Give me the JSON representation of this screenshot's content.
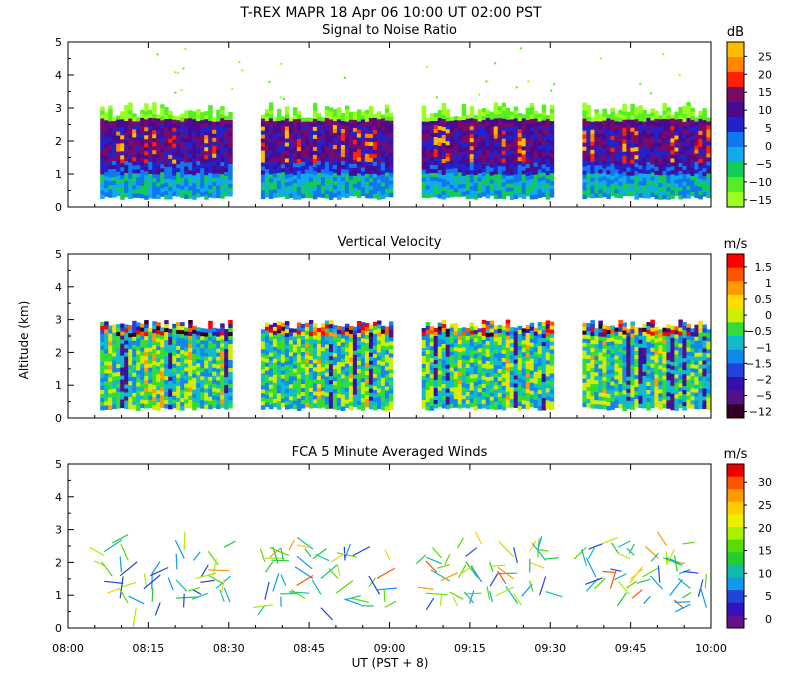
{
  "figure": {
    "title": "T-REX  MAPR 18 Apr 06  10:00 UT  02:00  PST",
    "xlabel": "UT  (PST + 8)",
    "ylabel": "Altitude (km)"
  },
  "chart_data": [
    {
      "type": "heatmap",
      "title": "Signal to Noise Ratio",
      "units": "dB",
      "ylim": [
        0,
        5
      ],
      "yticks": [
        "0",
        "1",
        "2",
        "3",
        "4",
        "5"
      ],
      "colorbar_ticks": [
        "25",
        "20",
        "15",
        "10",
        "5",
        "0",
        "−5",
        "−10",
        "−15"
      ],
      "colorbar_colors": [
        "#ffbb00",
        "#ff8800",
        "#ff2200",
        "#7a0a6a",
        "#4a0a90",
        "#2222cc",
        "#1177ee",
        "#11aaee",
        "#11cc55",
        "#55ee22",
        "#99ff22"
      ],
      "data_top_km": 2.7,
      "data_bottom_km": 0.35,
      "segments_ut": [
        [
          "08:06",
          "08:30"
        ],
        [
          "08:36",
          "09:00"
        ],
        [
          "09:06",
          "09:30"
        ],
        [
          "09:36",
          "10:00"
        ]
      ]
    },
    {
      "type": "heatmap",
      "title": "Vertical Velocity",
      "units": "m/s",
      "ylim": [
        0,
        5
      ],
      "yticks": [
        "0",
        "1",
        "2",
        "3",
        "4",
        "5"
      ],
      "colorbar_ticks": [
        "1.5",
        "1",
        "0.5",
        "0",
        "−0.5",
        "−1",
        "−1.5",
        "−2",
        "−5",
        "−12"
      ],
      "colorbar_colors": [
        "#ff0000",
        "#ff5500",
        "#ff9900",
        "#ffdd00",
        "#ccee00",
        "#33dd33",
        "#11bbcc",
        "#1188ee",
        "#2244dd",
        "#3311aa",
        "#551188",
        "#330022"
      ],
      "data_top_km": 2.7,
      "data_bottom_km": 0.35,
      "segments_ut": [
        [
          "08:06",
          "08:30"
        ],
        [
          "08:36",
          "09:00"
        ],
        [
          "09:06",
          "09:30"
        ],
        [
          "09:36",
          "10:00"
        ]
      ]
    },
    {
      "type": "wind-barbs",
      "title": "FCA 5 Minute Averaged Winds",
      "units": "m/s",
      "ylim": [
        0,
        5
      ],
      "yticks": [
        "0",
        "1",
        "2",
        "3",
        "4",
        "5"
      ],
      "colorbar_ticks": [
        "30",
        "25",
        "20",
        "15",
        "10",
        "5",
        "0"
      ],
      "colorbar_colors": [
        "#ee0000",
        "#ff5500",
        "#ff9900",
        "#ffcc00",
        "#eeee00",
        "#aaee00",
        "#55dd00",
        "#22cc33",
        "#11bbaa",
        "#1199ee",
        "#2244dd",
        "#3311bb",
        "#661188"
      ],
      "segments_ut": [
        [
          "08:06",
          "08:30"
        ],
        [
          "08:36",
          "09:00"
        ],
        [
          "09:06",
          "09:30"
        ],
        [
          "09:36",
          "10:00"
        ]
      ]
    }
  ],
  "x_axis": {
    "range_ut": [
      "08:00",
      "10:00"
    ],
    "tick_labels": [
      "08:00",
      "08:15",
      "08:30",
      "08:45",
      "09:00",
      "09:15",
      "09:30",
      "09:45",
      "10:00"
    ]
  }
}
